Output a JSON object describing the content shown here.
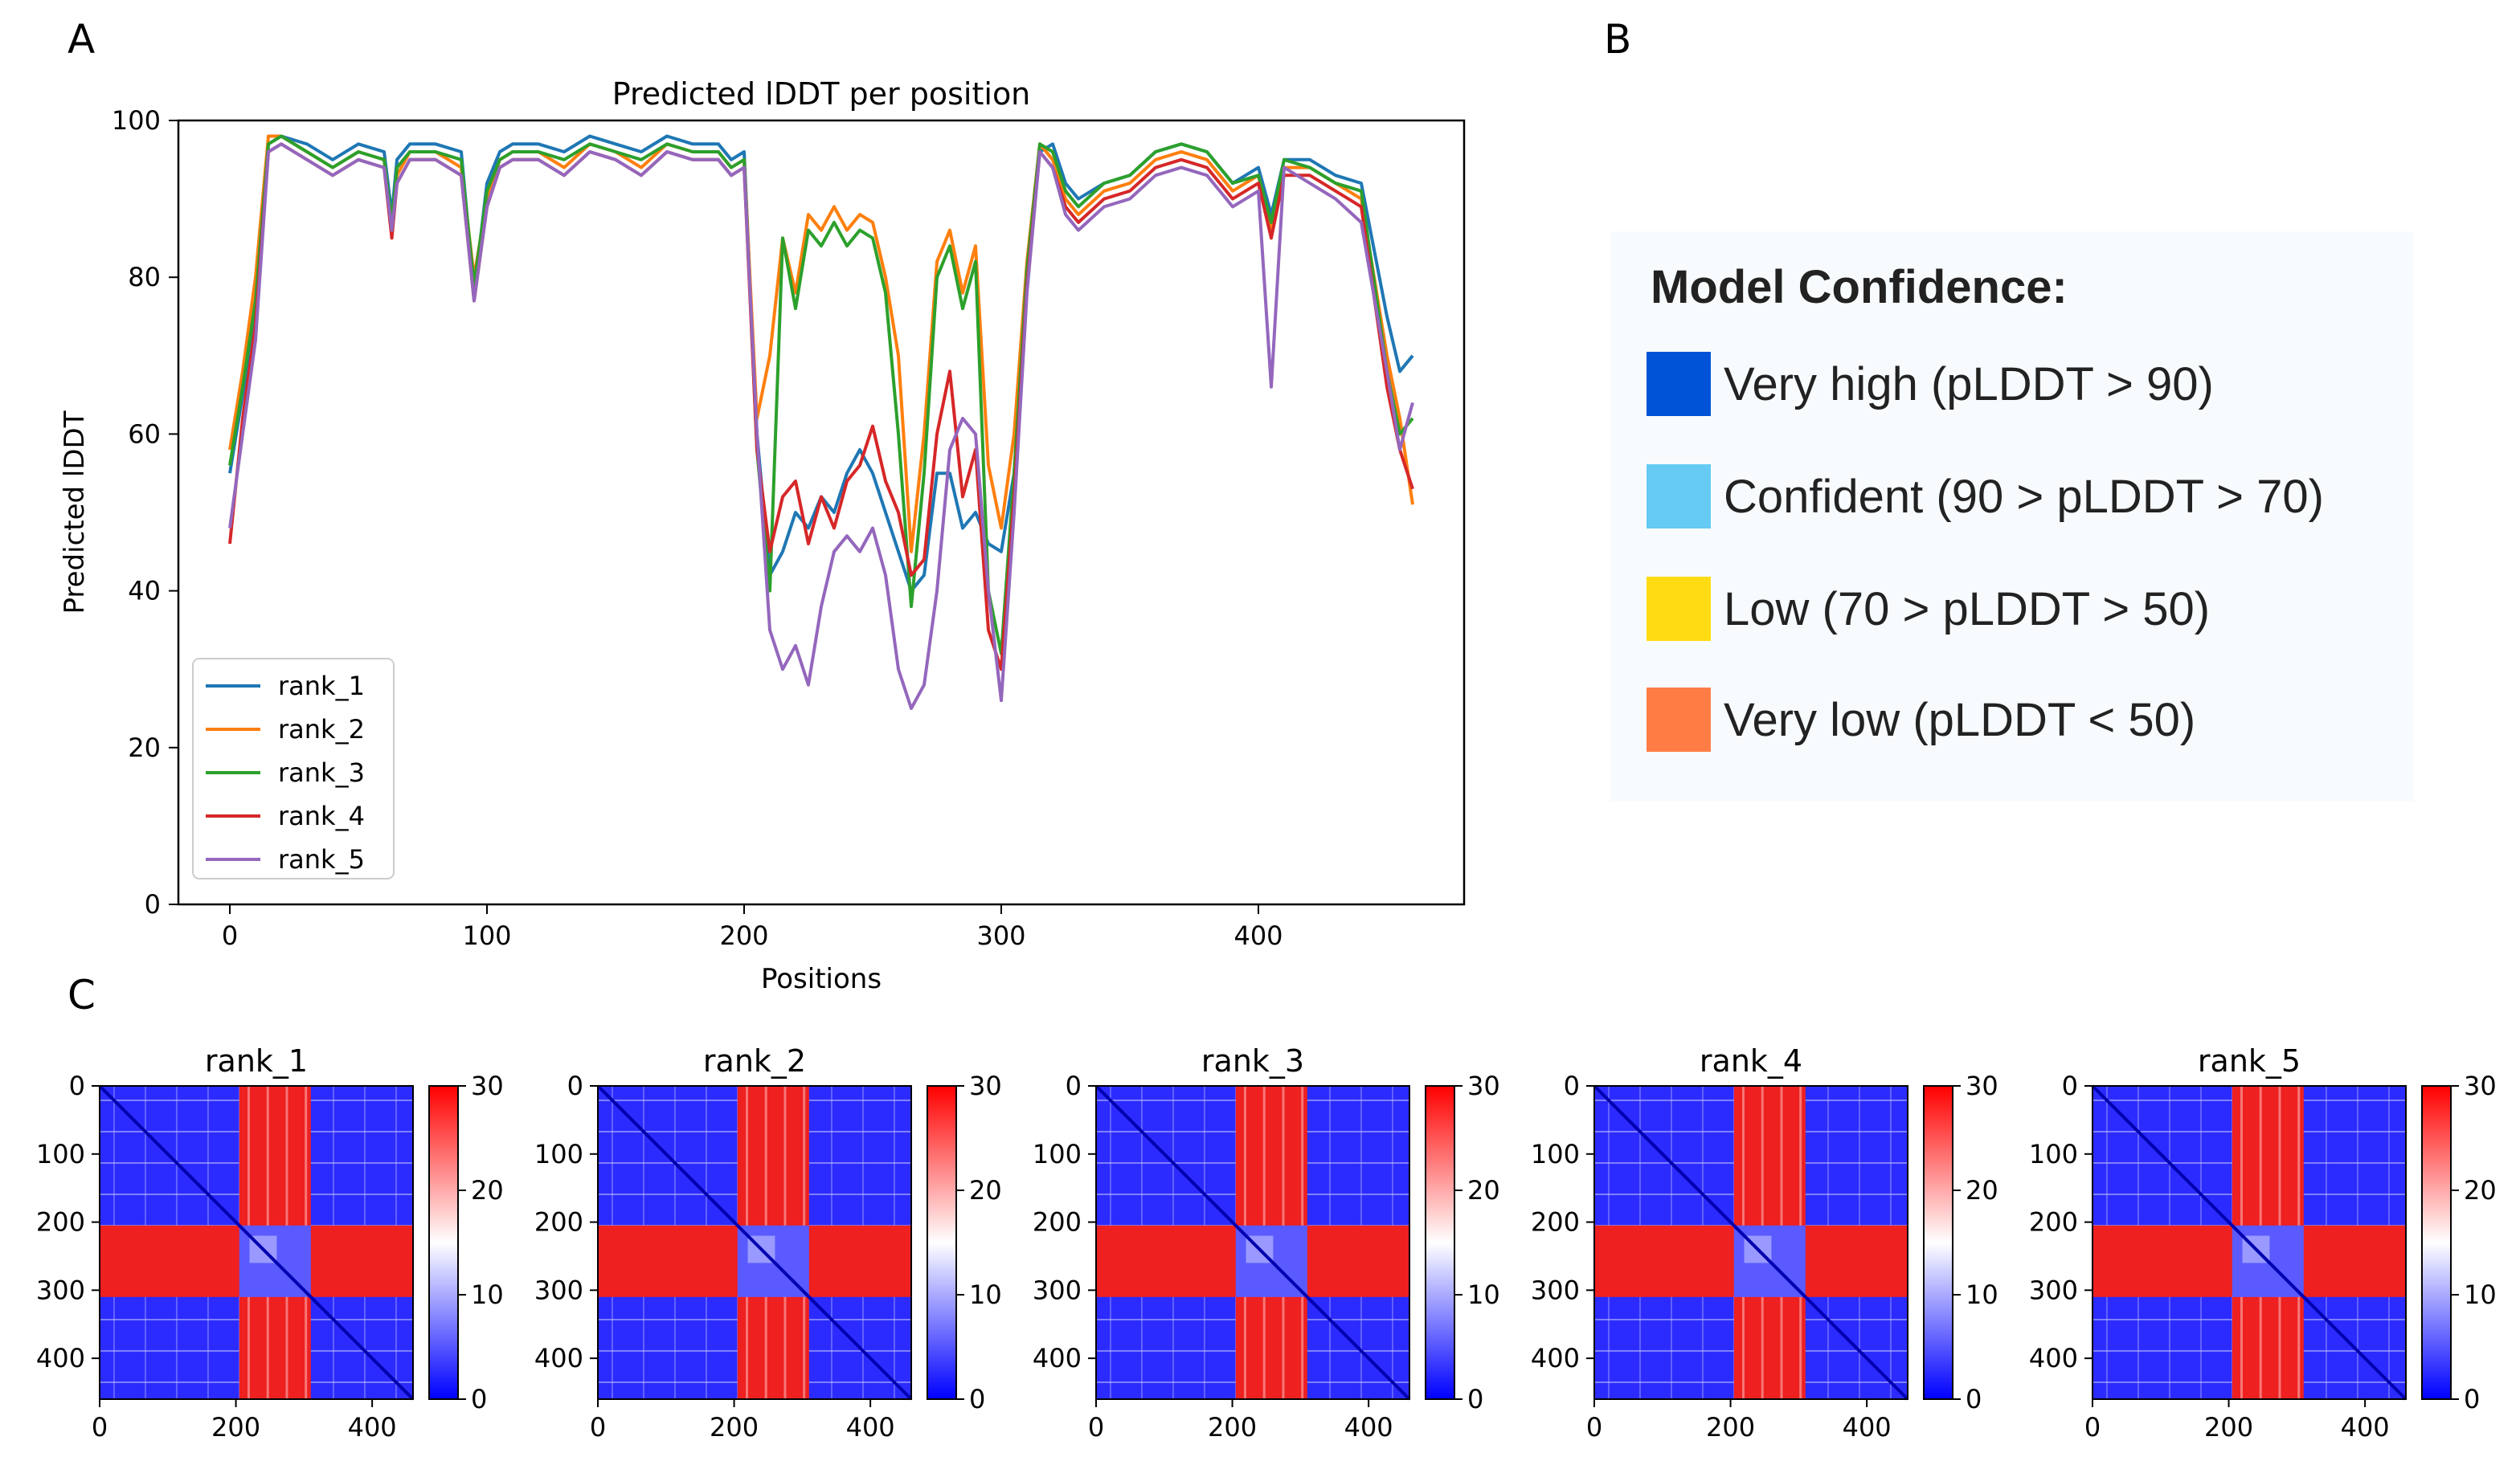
{
  "panel_labels": {
    "a": "A",
    "b": "B",
    "c": "C"
  },
  "chart_data": [
    {
      "type": "line",
      "title": "Predicted lDDT per position",
      "xlabel": "Positions",
      "ylabel": "Predicted lDDT",
      "xlim": [
        -20,
        480
      ],
      "ylim": [
        0,
        100
      ],
      "xticks": [
        0,
        100,
        200,
        300,
        400
      ],
      "yticks": [
        0,
        20,
        40,
        60,
        80,
        100
      ],
      "legend_position": "lower-left",
      "series": [
        {
          "name": "rank_1",
          "color": "#1f77b4",
          "x": [
            0,
            5,
            10,
            15,
            20,
            30,
            40,
            50,
            60,
            63,
            65,
            70,
            80,
            90,
            95,
            100,
            105,
            110,
            120,
            130,
            140,
            150,
            160,
            170,
            180,
            190,
            195,
            200,
            205,
            210,
            215,
            220,
            225,
            230,
            235,
            240,
            245,
            250,
            255,
            260,
            265,
            270,
            275,
            280,
            285,
            290,
            295,
            300,
            305,
            310,
            315,
            320,
            325,
            330,
            340,
            350,
            360,
            370,
            380,
            390,
            400,
            405,
            410,
            420,
            430,
            440,
            450,
            455,
            460
          ],
          "y": [
            55,
            65,
            75,
            97,
            98,
            97,
            95,
            97,
            96,
            88,
            95,
            97,
            97,
            96,
            78,
            92,
            96,
            97,
            97,
            96,
            98,
            97,
            96,
            98,
            97,
            97,
            95,
            96,
            60,
            42,
            45,
            50,
            48,
            52,
            50,
            55,
            58,
            55,
            50,
            45,
            40,
            42,
            55,
            55,
            48,
            50,
            46,
            45,
            55,
            80,
            96,
            97,
            92,
            90,
            92,
            93,
            96,
            97,
            96,
            92,
            94,
            88,
            95,
            95,
            93,
            92,
            75,
            68,
            70
          ]
        },
        {
          "name": "rank_2",
          "color": "#ff7f0e",
          "x": [
            0,
            5,
            10,
            15,
            20,
            30,
            40,
            50,
            60,
            63,
            65,
            70,
            80,
            90,
            95,
            100,
            105,
            110,
            120,
            130,
            140,
            150,
            160,
            170,
            180,
            190,
            195,
            200,
            205,
            210,
            215,
            220,
            225,
            230,
            235,
            240,
            245,
            250,
            255,
            260,
            265,
            270,
            275,
            280,
            285,
            290,
            295,
            300,
            305,
            310,
            315,
            320,
            325,
            330,
            340,
            350,
            360,
            370,
            380,
            390,
            400,
            405,
            410,
            420,
            430,
            440,
            450,
            455,
            460
          ],
          "y": [
            58,
            68,
            80,
            98,
            98,
            96,
            94,
            96,
            95,
            86,
            93,
            96,
            96,
            94,
            80,
            90,
            95,
            96,
            96,
            94,
            97,
            96,
            94,
            97,
            96,
            96,
            94,
            95,
            62,
            70,
            85,
            78,
            88,
            86,
            89,
            86,
            88,
            87,
            80,
            70,
            45,
            60,
            82,
            86,
            78,
            84,
            56,
            48,
            60,
            82,
            97,
            95,
            90,
            88,
            91,
            92,
            95,
            96,
            95,
            91,
            93,
            86,
            94,
            94,
            92,
            90,
            70,
            62,
            51
          ]
        },
        {
          "name": "rank_3",
          "color": "#2ca02c",
          "x": [
            0,
            5,
            10,
            15,
            20,
            30,
            40,
            50,
            60,
            63,
            65,
            70,
            80,
            90,
            95,
            100,
            105,
            110,
            120,
            130,
            140,
            150,
            160,
            170,
            180,
            190,
            195,
            200,
            205,
            210,
            215,
            220,
            225,
            230,
            235,
            240,
            245,
            250,
            255,
            260,
            265,
            270,
            275,
            280,
            285,
            290,
            295,
            300,
            305,
            310,
            315,
            320,
            325,
            330,
            340,
            350,
            360,
            370,
            380,
            390,
            400,
            405,
            410,
            420,
            430,
            440,
            450,
            455,
            460
          ],
          "y": [
            56,
            66,
            77,
            97,
            98,
            96,
            94,
            96,
            95,
            87,
            94,
            96,
            96,
            95,
            79,
            91,
            95,
            96,
            96,
            95,
            97,
            96,
            95,
            97,
            96,
            96,
            94,
            95,
            58,
            40,
            85,
            76,
            86,
            84,
            87,
            84,
            86,
            85,
            78,
            60,
            38,
            55,
            80,
            84,
            76,
            82,
            40,
            32,
            55,
            81,
            97,
            96,
            91,
            89,
            92,
            93,
            96,
            97,
            96,
            92,
            93,
            87,
            95,
            94,
            92,
            91,
            68,
            60,
            62
          ]
        },
        {
          "name": "rank_4",
          "color": "#d62728",
          "x": [
            0,
            5,
            10,
            15,
            20,
            30,
            40,
            50,
            60,
            63,
            65,
            70,
            80,
            90,
            95,
            100,
            105,
            110,
            120,
            130,
            140,
            150,
            160,
            170,
            180,
            190,
            195,
            200,
            205,
            210,
            215,
            220,
            225,
            230,
            235,
            240,
            245,
            250,
            255,
            260,
            265,
            270,
            275,
            280,
            285,
            290,
            295,
            300,
            305,
            310,
            315,
            320,
            325,
            330,
            340,
            350,
            360,
            370,
            380,
            390,
            400,
            405,
            410,
            420,
            430,
            440,
            450,
            455,
            460
          ],
          "y": [
            46,
            62,
            74,
            96,
            97,
            95,
            93,
            95,
            94,
            85,
            92,
            95,
            95,
            93,
            77,
            89,
            94,
            95,
            95,
            93,
            96,
            95,
            93,
            96,
            95,
            95,
            93,
            94,
            58,
            45,
            52,
            54,
            46,
            52,
            48,
            54,
            56,
            61,
            54,
            50,
            42,
            44,
            60,
            68,
            52,
            58,
            35,
            30,
            52,
            79,
            96,
            94,
            89,
            87,
            90,
            91,
            94,
            95,
            94,
            90,
            92,
            85,
            93,
            93,
            91,
            89,
            66,
            58,
            53
          ]
        },
        {
          "name": "rank_5",
          "color": "#9467bd",
          "x": [
            0,
            5,
            10,
            15,
            20,
            30,
            40,
            50,
            60,
            63,
            65,
            70,
            80,
            90,
            95,
            100,
            105,
            110,
            120,
            130,
            140,
            150,
            160,
            170,
            180,
            190,
            195,
            200,
            205,
            210,
            215,
            220,
            225,
            230,
            235,
            240,
            245,
            250,
            255,
            260,
            265,
            270,
            275,
            280,
            285,
            290,
            295,
            300,
            305,
            310,
            315,
            320,
            325,
            330,
            340,
            350,
            360,
            370,
            380,
            390,
            400,
            405,
            410,
            420,
            430,
            440,
            450,
            455,
            460
          ],
          "y": [
            48,
            60,
            72,
            96,
            97,
            95,
            93,
            95,
            94,
            86,
            92,
            95,
            95,
            93,
            77,
            89,
            94,
            95,
            95,
            93,
            96,
            95,
            93,
            96,
            95,
            95,
            93,
            94,
            60,
            35,
            30,
            33,
            28,
            38,
            45,
            47,
            45,
            48,
            42,
            30,
            25,
            28,
            40,
            58,
            62,
            60,
            40,
            26,
            50,
            78,
            96,
            94,
            88,
            86,
            89,
            90,
            93,
            94,
            93,
            89,
            91,
            66,
            94,
            92,
            90,
            87,
            68,
            58,
            64
          ]
        }
      ]
    },
    {
      "type": "heatmap",
      "panels": [
        "rank_1",
        "rank_2",
        "rank_3",
        "rank_4",
        "rank_5"
      ],
      "xticks": [
        0,
        200,
        400
      ],
      "yticks": [
        0,
        100,
        200,
        300,
        400
      ],
      "colorbar_ticks": [
        0,
        10,
        20,
        30
      ],
      "vmin": 0,
      "vmax": 30,
      "colormap": "bwr",
      "size": 460,
      "uncertain_region": [
        205,
        310
      ]
    }
  ],
  "confidence_legend": {
    "title": "Model Confidence:",
    "items": [
      {
        "label": "Very high (pLDDT > 90)",
        "color": "#0053d6"
      },
      {
        "label": "Confident (90 > pLDDT > 70)",
        "color": "#65cbf3"
      },
      {
        "label": "Low (70 > pLDDT > 50)",
        "color": "#ffdb13"
      },
      {
        "label": "Very low (pLDDT < 50)",
        "color": "#ff7d45"
      }
    ]
  }
}
